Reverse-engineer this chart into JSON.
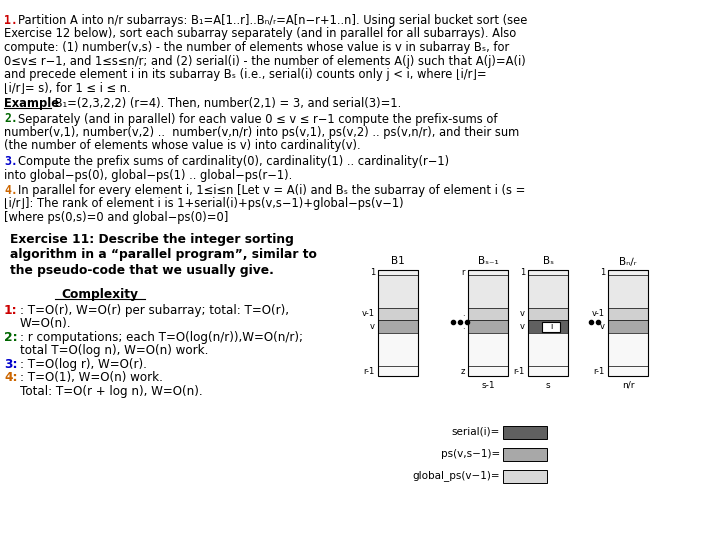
{
  "bg_color": "#ffffff",
  "text_color": "#000000",
  "paragraph1_lines": [
    "1. Partition A into n/r subarrays: B₁=A[1..r]..Bₙ∕ᵣ=A[n−r+1..n]. Using serial bucket sort (see",
    "Exercise 12 below), sort each subarray separately (and in parallel for all subarrays). Also",
    "compute: (1) number(v,s) - the number of elements whose value is v in subarray Bₛ, for",
    "0≤v≤ r−1, and 1≤s≤n/r; and (2) serial(i) - the number of elements A(j) such that A(j)=A(i)",
    "and precede element i in its subarray Bₛ (i.e., serial(i) counts only j < i, where ⌊i/r⌋=",
    "⌊i/r⌋= s), for 1 ≤ i ≤ n."
  ],
  "paragraph3_lines": [
    "2. Separately (and in parallel) for each value 0 ≤ v ≤ r−1 compute the prefix-sums of",
    "number(v,1), number(v,2) ..  number(v,n/r) into ps(v,1), ps(v,2) .. ps(v,n/r), and their sum",
    "(the number of elements whose value is v) into cardinality(v)."
  ],
  "paragraph4_lines": [
    "3. Compute the prefix sums of cardinality(0), cardinality(1) .. cardinality(r−1)",
    "into global−ps(0), global−ps(1) .. global−ps(r−1)."
  ],
  "paragraph5_lines": [
    "4. In parallel for every element i, 1≤i≤n [Let v = A(i) and Bₛ the subarray of element i (s =",
    "⌊i/r⌋]: The rank of element i is 1+serial(i)+ps(v,s−1)+global−ps(v−1)",
    "[where ps(0,s)=0 and global−ps(0)=0]"
  ],
  "exercise_lines": [
    "Exercise 11: Describe the integer sorting",
    "algorithm in a “parallel program”, similar to",
    "the pseudo-code that we usually give."
  ],
  "complexity_title": "Complexity",
  "complexity_lines": [
    [
      "1",
      ": T=O(r), W=O(r) per subarray; total: T=O(r),"
    ],
    [
      "",
      "W=O(n)."
    ],
    [
      "2",
      ": r computations; each T=O(log(n/r)),W=O(n/r);"
    ],
    [
      "",
      "total T=O(log n), W=O(n) work."
    ],
    [
      "3",
      ": T=O(log r), W=O(r)."
    ],
    [
      "4",
      ": T=O(1), W=O(n) work."
    ],
    [
      "",
      "Total: T=O(r + log n), W=O(n)."
    ]
  ],
  "color_1": "#cc0000",
  "color_2": "#006600",
  "color_3": "#0000cc",
  "color_4": "#cc6600",
  "bar_light_gray": "#d8d8d8",
  "bar_medium_gray": "#a8a8a8",
  "bar_dark_gray": "#606060",
  "legend_serial_label": "serial(i)=",
  "legend_ps_label": "ps(v,s−1)=",
  "legend_gps_label": "global_ps(v−1)="
}
